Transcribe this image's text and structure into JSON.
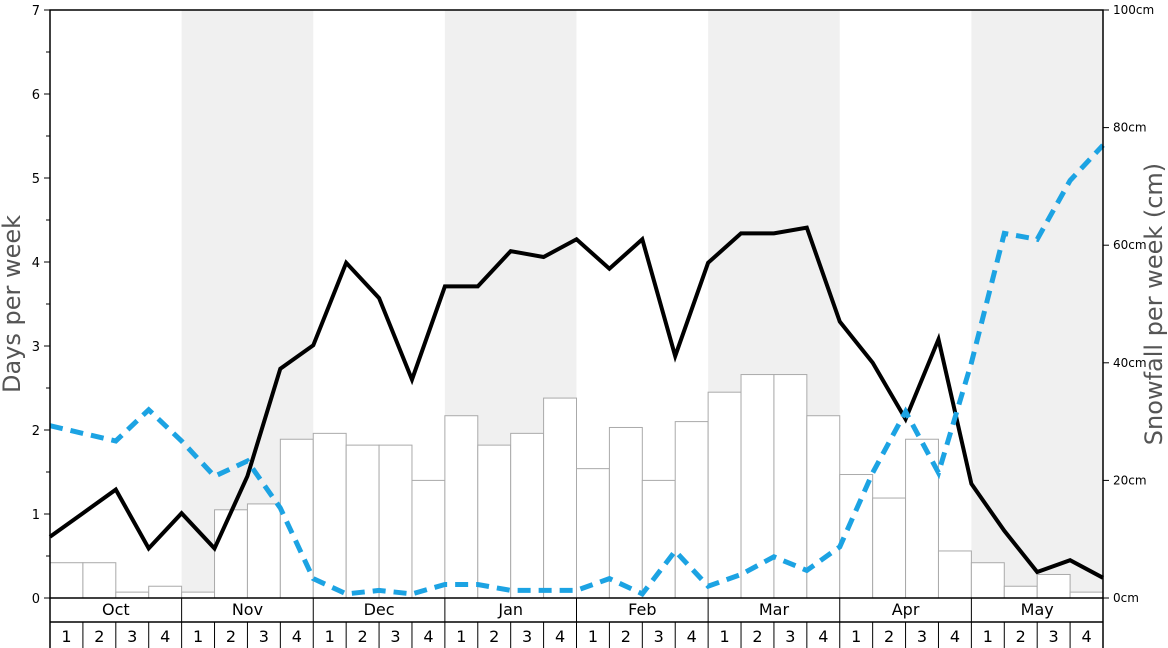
{
  "chart_data": {
    "type": "bar",
    "ylabel_left": "Days per week",
    "ylabel_right": "Snowfall per week (cm)",
    "ylim_left": [
      0,
      7
    ],
    "ylim_right": [
      0,
      100
    ],
    "yticks_left": [
      "0",
      "1",
      "2",
      "3",
      "4",
      "5",
      "6",
      "7"
    ],
    "yticks_right": [
      "0cm",
      "20cm",
      "40cm",
      "60cm",
      "80cm",
      "100cm"
    ],
    "months": [
      "Oct",
      "Nov",
      "Dec",
      "Jan",
      "Feb",
      "Mar",
      "Apr",
      "May"
    ],
    "week_labels": [
      "1",
      "2",
      "3",
      "4"
    ],
    "shaded_months": [
      "Nov",
      "Jan",
      "Mar",
      "May"
    ],
    "grid": false,
    "colors": {
      "bars": "#ffffff",
      "bar_border": "#aaaaaa",
      "shade": "#f0f0f0",
      "line_days": "#000000",
      "line_snowfall": "#1ca3e3"
    },
    "series": [
      {
        "kind": "bar",
        "axis": "left",
        "values": [
          0.42,
          0.42,
          0.07,
          0.14,
          0.07,
          1.05,
          1.12,
          1.89,
          1.96,
          1.82,
          1.82,
          1.4,
          2.17,
          1.82,
          1.96,
          2.38,
          1.54,
          2.03,
          1.4,
          2.1,
          2.45,
          2.66,
          2.66,
          2.17,
          1.47,
          1.19,
          1.89,
          0.56,
          0.42,
          0.14,
          0.28,
          0.07
        ]
      },
      {
        "kind": "line",
        "style": "solid",
        "axis": "left",
        "values": [
          0.73,
          1.01,
          1.29,
          0.59,
          1.01,
          0.59,
          1.45,
          2.73,
          3.01,
          3.99,
          3.57,
          2.6,
          3.71,
          3.71,
          4.13,
          4.06,
          4.27,
          3.92,
          4.27,
          2.88,
          3.99,
          4.34,
          4.34,
          4.41,
          3.29,
          2.8,
          2.13,
          3.08,
          1.36,
          0.8,
          0.31,
          0.45,
          0.24
        ]
      },
      {
        "kind": "line",
        "style": "dashed",
        "axis": "right",
        "values": [
          29.3,
          28.0,
          26.7,
          32.0,
          26.7,
          20.7,
          23.3,
          15.3,
          3.3,
          0.7,
          1.3,
          0.7,
          2.3,
          2.3,
          1.3,
          1.3,
          1.3,
          3.3,
          0.7,
          8.0,
          2.0,
          4.0,
          7.0,
          4.7,
          8.7,
          21.3,
          31.7,
          21.3,
          40.0,
          62.0,
          61.0,
          71.0,
          77.0
        ]
      }
    ]
  }
}
